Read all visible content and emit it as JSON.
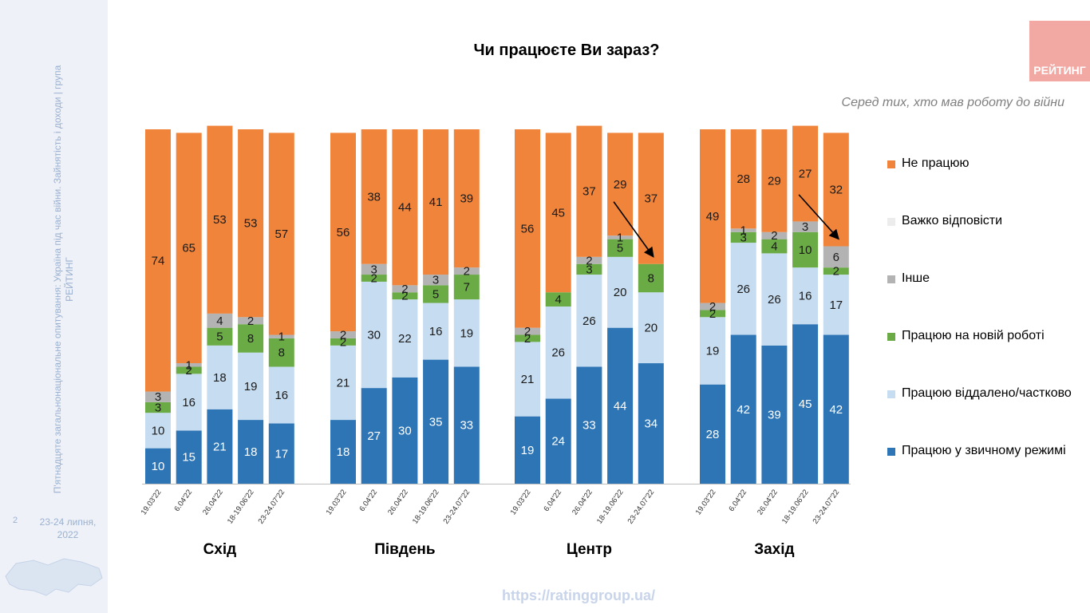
{
  "sidebar": {
    "vertical_text": "П'ятнадцяте загальнонаціональне опитування: Україна під час війни. Зайнятість і доходи | група РЕЙТИНГ",
    "page_number": "2",
    "date": "23-24 липня, 2022"
  },
  "logo": {
    "text": "РЕЙТИНГ"
  },
  "footer": {
    "url": "https://ratinggroup.ua/"
  },
  "chart_data": {
    "type": "bar",
    "stacked": true,
    "title": "Чи працюєте Ви зараз?",
    "subtitle": "Серед тих, хто мав роботу до війни",
    "ylim": [
      0,
      100
    ],
    "grid": false,
    "legend_position": "right",
    "series_order_bottom_to_top": [
      "usual",
      "remote",
      "new_job",
      "other",
      "hard",
      "not_working"
    ],
    "series": [
      {
        "key": "not_working",
        "name": "Не працюю",
        "color": "#f0843a"
      },
      {
        "key": "hard",
        "name": "Важко відповісти",
        "color": "#ececec"
      },
      {
        "key": "other",
        "name": "Інше",
        "color": "#b3b3b3"
      },
      {
        "key": "new_job",
        "name": "Працюю на новій роботі",
        "color": "#6aab46"
      },
      {
        "key": "remote",
        "name": "Працюю віддалено/частково",
        "color": "#c6dcf0"
      },
      {
        "key": "usual",
        "name": "Працюю у звичному режимі",
        "color": "#2e75b6"
      }
    ],
    "groups": [
      {
        "name": "Схід",
        "bars": [
          {
            "date": "19.03'22",
            "usual": 10,
            "remote": 10,
            "new_job": 3,
            "other": 3,
            "hard": null,
            "not_working": 74
          },
          {
            "date": "6.04'22",
            "usual": 15,
            "remote": 16,
            "new_job": 2,
            "other": 1,
            "hard": null,
            "not_working": 65
          },
          {
            "date": "26.04'22",
            "usual": 21,
            "remote": 18,
            "new_job": 5,
            "other": 4,
            "hard": null,
            "not_working": 53
          },
          {
            "date": "18-19.06'22",
            "usual": 18,
            "remote": 19,
            "new_job": 8,
            "other": 2,
            "hard": null,
            "not_working": 53
          },
          {
            "date": "23-24.07'22",
            "usual": 17,
            "remote": 16,
            "new_job": 8,
            "other": 1,
            "hard": null,
            "not_working": 57
          }
        ]
      },
      {
        "name": "Південь",
        "bars": [
          {
            "date": "19.03'22",
            "usual": 18,
            "remote": 21,
            "new_job": 2,
            "other": 2,
            "hard": null,
            "not_working": 56
          },
          {
            "date": "6.04'22",
            "usual": 27,
            "remote": 30,
            "new_job": 2,
            "other": 3,
            "hard": null,
            "not_working": 38
          },
          {
            "date": "26.04'22",
            "usual": 30,
            "remote": 22,
            "new_job": 2,
            "other": 2,
            "hard": null,
            "not_working": 44
          },
          {
            "date": "18-19.06'22",
            "usual": 35,
            "remote": 16,
            "new_job": 5,
            "other": 3,
            "hard": null,
            "not_working": 41
          },
          {
            "date": "23-24.07'22",
            "usual": 33,
            "remote": 19,
            "new_job": 7,
            "other": 2,
            "hard": null,
            "not_working": 39
          }
        ]
      },
      {
        "name": "Центр",
        "bars": [
          {
            "date": "19.03'22",
            "usual": 19,
            "remote": 21,
            "new_job": 2,
            "other": 2,
            "hard": null,
            "not_working": 56
          },
          {
            "date": "6.04'22",
            "usual": 24,
            "remote": 26,
            "new_job": 4,
            "other": null,
            "hard": null,
            "not_working": 45
          },
          {
            "date": "26.04'22",
            "usual": 33,
            "remote": 26,
            "new_job": 3,
            "other": 2,
            "hard": null,
            "not_working": 37
          },
          {
            "date": "18-19.06'22",
            "usual": 44,
            "remote": 20,
            "new_job": 5,
            "other": 1,
            "hard": null,
            "not_working": 29
          },
          {
            "date": "23-24.07'22",
            "usual": 34,
            "remote": 20,
            "new_job": 8,
            "other": null,
            "hard": null,
            "not_working": 37
          }
        ]
      },
      {
        "name": "Захід",
        "bars": [
          {
            "date": "19.03'22",
            "usual": 28,
            "remote": 19,
            "new_job": 2,
            "other": 2,
            "hard": null,
            "not_working": 49
          },
          {
            "date": "6.04'22",
            "usual": 42,
            "remote": 26,
            "new_job": 3,
            "other": 1,
            "hard": null,
            "not_working": 28
          },
          {
            "date": "26.04'22",
            "usual": 39,
            "remote": 26,
            "new_job": 4,
            "other": 2,
            "hard": null,
            "not_working": 29
          },
          {
            "date": "18-19.06'22",
            "usual": 45,
            "remote": 16,
            "new_job": 10,
            "other": 3,
            "hard": null,
            "not_working": 27
          },
          {
            "date": "23-24.07'22",
            "usual": 42,
            "remote": 17,
            "new_job": 2,
            "other": 6,
            "hard": null,
            "not_working": 32
          }
        ]
      }
    ],
    "annotations": [
      {
        "type": "arrow",
        "group": "Центр",
        "from_bar": "18-19.06'22",
        "to_bar": "23-24.07'22"
      },
      {
        "type": "arrow",
        "group": "Захід",
        "from_bar": "18-19.06'22",
        "to_bar": "23-24.07'22"
      }
    ]
  }
}
